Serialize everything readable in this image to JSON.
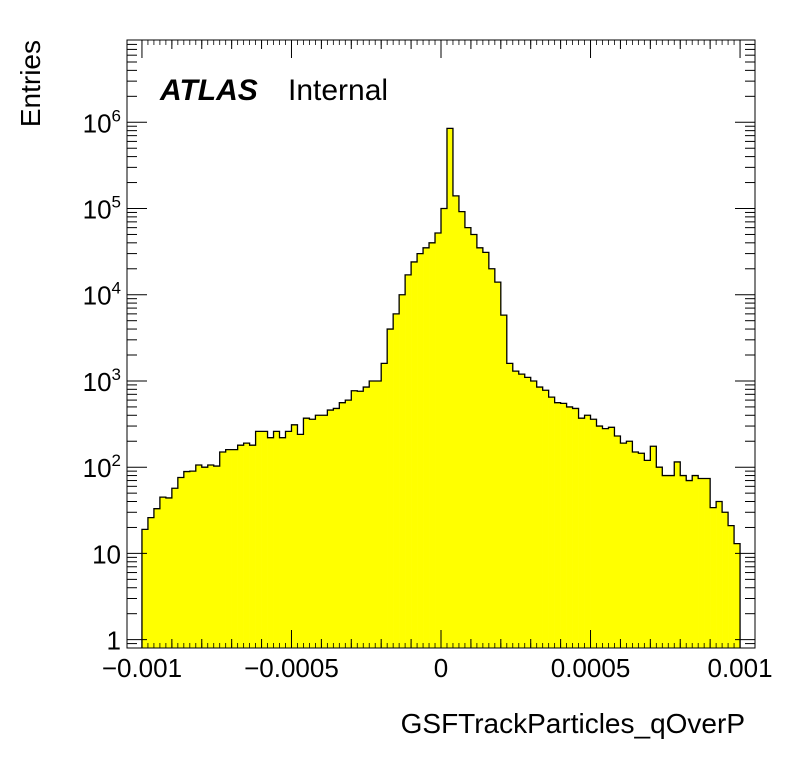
{
  "chart_data": {
    "type": "bar",
    "style": "histogram",
    "fill_color": "#ffff00",
    "line_color": "#000000",
    "title": "",
    "xlabel": "GSFTrackParticles_qOverP",
    "ylabel": "Entries",
    "y_scale": "log",
    "xlim": [
      -0.00105,
      0.00105
    ],
    "ylim": [
      0.8,
      9000000
    ],
    "annotation": {
      "atlas": "ATLAS",
      "status": "Internal"
    },
    "x_tick_labels": [
      {
        "value": -0.001,
        "label": "−0.001"
      },
      {
        "value": -0.0005,
        "label": "−0.0005"
      },
      {
        "value": 0,
        "label": "0"
      },
      {
        "value": 0.0005,
        "label": "0.0005"
      },
      {
        "value": 0.001,
        "label": "0.001"
      }
    ],
    "y_tick_labels": [
      {
        "value": 1,
        "base": "1",
        "exp": ""
      },
      {
        "value": 10,
        "base": "10",
        "exp": ""
      },
      {
        "value": 100,
        "base": "10",
        "exp": "2"
      },
      {
        "value": 1000,
        "base": "10",
        "exp": "3"
      },
      {
        "value": 10000,
        "base": "10",
        "exp": "4"
      },
      {
        "value": 100000,
        "base": "10",
        "exp": "5"
      },
      {
        "value": 1000000,
        "base": "10",
        "exp": "6"
      }
    ],
    "bin_low": -0.001,
    "bin_width": 2e-05,
    "values": [
      19,
      26,
      33,
      45,
      44,
      57,
      76,
      89,
      90,
      106,
      100,
      106,
      103,
      150,
      160,
      160,
      180,
      190,
      180,
      260,
      260,
      220,
      260,
      220,
      260,
      310,
      240,
      370,
      360,
      400,
      400,
      460,
      480,
      560,
      600,
      770,
      760,
      850,
      1000,
      1000,
      1600,
      4000,
      6000,
      10000,
      17000,
      24000,
      30000,
      35000,
      40000,
      52000,
      100000,
      850000,
      140000,
      92000,
      60000,
      50000,
      35000,
      31000,
      20000,
      14000,
      5800,
      1600,
      1300,
      1200,
      1100,
      1000,
      850,
      780,
      650,
      560,
      550,
      500,
      480,
      370,
      400,
      360,
      300,
      280,
      290,
      230,
      190,
      200,
      150,
      145,
      120,
      175,
      100,
      80,
      80,
      115,
      80,
      70,
      80,
      74,
      74,
      34,
      40,
      30,
      21,
      13
    ]
  }
}
